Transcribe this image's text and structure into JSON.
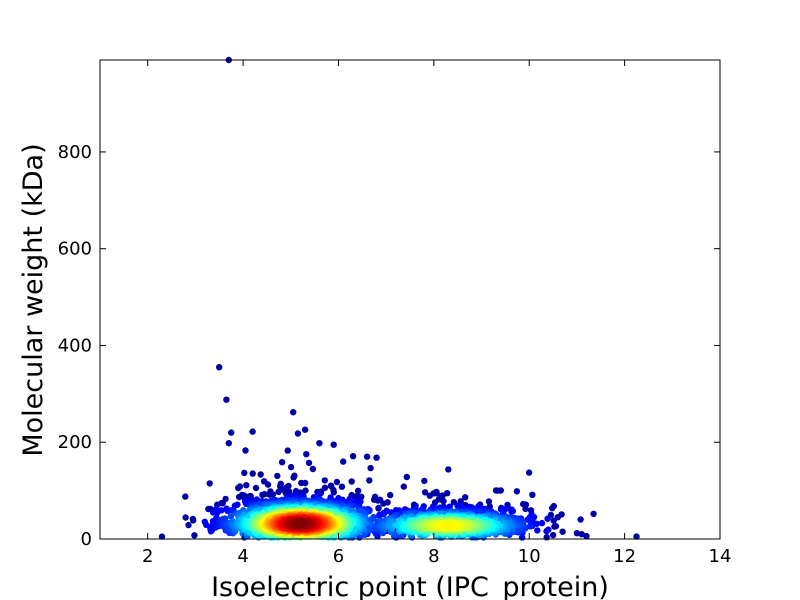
{
  "chart_data": {
    "type": "scatter",
    "title": "",
    "xlabel": "Isoelectric point (IPC_protein)",
    "ylabel": "Molecular weight (kDa)",
    "xlim": [
      1,
      14
    ],
    "ylim": [
      0,
      990
    ],
    "xticks": [
      2,
      4,
      6,
      8,
      10,
      12,
      14
    ],
    "yticks": [
      0,
      200,
      400,
      600,
      800
    ],
    "grid": false,
    "legend": "none",
    "color_scale": "density (blue low to red high, jet colormap)",
    "colors": {
      "low": "#00008b",
      "mid": "#00ccff",
      "high_mid": "#ffee00",
      "high": "#ff2200",
      "peak": "#990000"
    },
    "clusters": [
      {
        "x_center": 5.2,
        "y_center": 32,
        "x_spread": 0.75,
        "y_spread": 22,
        "weight": 0.62
      },
      {
        "x_center": 8.3,
        "y_center": 28,
        "x_spread": 0.85,
        "y_spread": 16,
        "weight": 0.38
      }
    ],
    "outliers": [
      {
        "x": 3.7,
        "y": 990
      },
      {
        "x": 3.5,
        "y": 355
      },
      {
        "x": 3.65,
        "y": 288
      },
      {
        "x": 3.75,
        "y": 220
      },
      {
        "x": 3.7,
        "y": 198
      },
      {
        "x": 4.2,
        "y": 222
      },
      {
        "x": 4.05,
        "y": 183
      },
      {
        "x": 3.3,
        "y": 115
      },
      {
        "x": 5.05,
        "y": 262
      },
      {
        "x": 5.3,
        "y": 226
      },
      {
        "x": 5.15,
        "y": 218
      },
      {
        "x": 5.6,
        "y": 198
      },
      {
        "x": 5.9,
        "y": 195
      },
      {
        "x": 6.1,
        "y": 160
      },
      {
        "x": 6.6,
        "y": 170
      },
      {
        "x": 6.8,
        "y": 168
      },
      {
        "x": 7.8,
        "y": 120
      },
      {
        "x": 2.3,
        "y": 5
      },
      {
        "x": 3.4,
        "y": 30
      },
      {
        "x": 3.6,
        "y": 28
      },
      {
        "x": 10.6,
        "y": 45
      },
      {
        "x": 11.35,
        "y": 52
      },
      {
        "x": 11.0,
        "y": 12
      },
      {
        "x": 11.1,
        "y": 10
      },
      {
        "x": 11.2,
        "y": 6
      },
      {
        "x": 10.7,
        "y": 15
      },
      {
        "x": 12.25,
        "y": 5
      },
      {
        "x": 10.5,
        "y": 8
      }
    ]
  }
}
